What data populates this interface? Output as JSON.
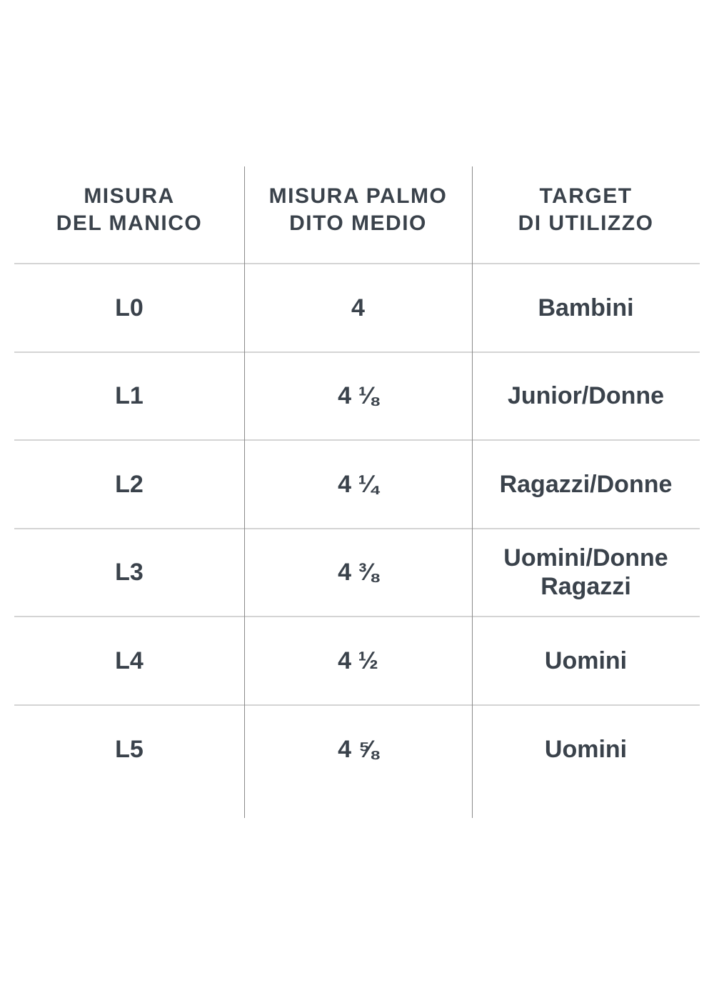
{
  "chart_data": {
    "type": "table",
    "columns": [
      "MISURA\nDEL MANICO",
      "MISURA PALMO\nDITO MEDIO",
      "TARGET\nDI UTILIZZO"
    ],
    "rows": [
      [
        "L0",
        "4",
        "Bambini"
      ],
      [
        "L1",
        "4 ⅛",
        "Junior/Donne"
      ],
      [
        "L2",
        "4 ¼",
        "Ragazzi/Donne"
      ],
      [
        "L3",
        "4 ⅜",
        "Uomini/Donne\nRagazzi"
      ],
      [
        "L4",
        "4 ½",
        "Uomini"
      ],
      [
        "L5",
        "4 ⅝",
        "Uomini"
      ]
    ],
    "layout": {
      "grid": "horizontal dividers between all rows, vertical dividers between columns only, no outer border"
    }
  },
  "colors": {
    "text": "#3a424b",
    "horizontal_divider": "#d4d4d4",
    "vertical_divider": "#8a8a8a",
    "background": "#ffffff"
  }
}
